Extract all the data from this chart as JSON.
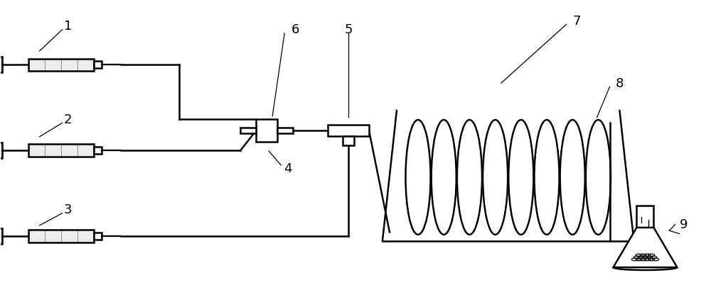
{
  "bg_color": "#ffffff",
  "line_color": "#000000",
  "line_width": 1.8,
  "label_fontsize": 13
}
